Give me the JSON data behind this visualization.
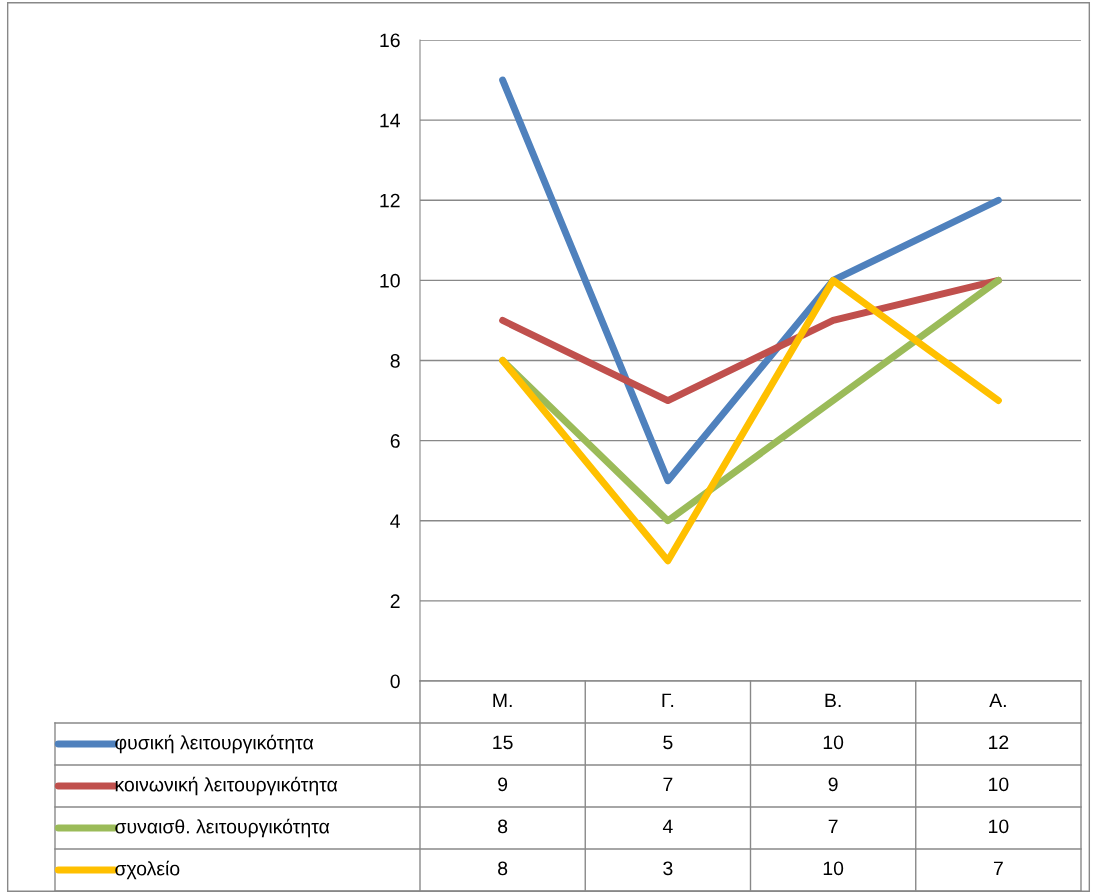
{
  "chart_data": {
    "type": "line",
    "categories": [
      "Μ.",
      "Γ.",
      "Β.",
      "Α."
    ],
    "series": [
      {
        "name": "φυσική λειτουργικότητα",
        "color": "#4f81bd",
        "values": [
          15,
          5,
          10,
          12
        ]
      },
      {
        "name": "κοινωνική λειτουργικότητα",
        "color": "#c0504d",
        "values": [
          9,
          7,
          9,
          10
        ]
      },
      {
        "name": "συναισθ. λειτουργικότητα",
        "color": "#9bbb59",
        "values": [
          8,
          4,
          7,
          10
        ]
      },
      {
        "name": "σχολείο",
        "color": "#ffc000",
        "values": [
          8,
          3,
          10,
          7
        ]
      }
    ],
    "ylim": [
      0,
      16
    ],
    "yticks": [
      0,
      2,
      4,
      6,
      8,
      10,
      12,
      14,
      16
    ],
    "grid": "y",
    "legend": "bottom",
    "data_labels": true,
    "marker": "none",
    "line_style": "solid"
  }
}
